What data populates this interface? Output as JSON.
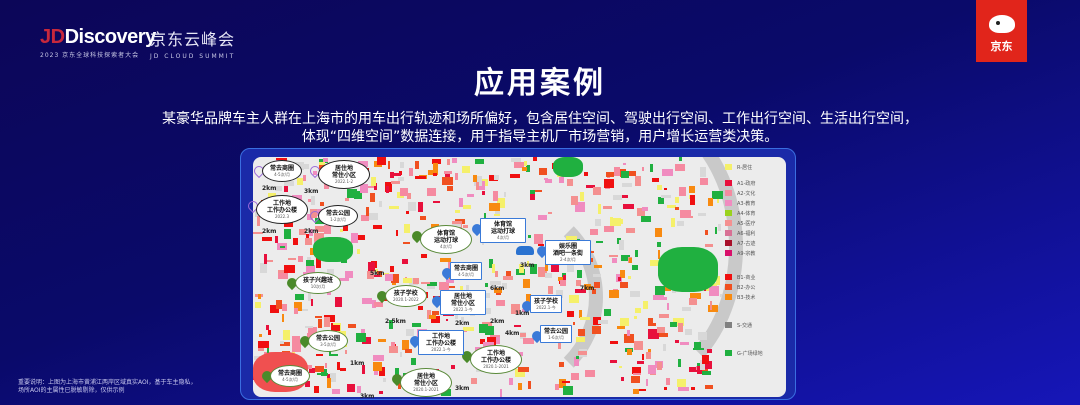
{
  "header": {
    "logo_text": "JDDiscovery",
    "logo_subtitle": "2023 京东全球科技探索者大会",
    "summit_cn": "京东云峰会",
    "summit_en": "JD CLOUD SUMMIT",
    "brand_badge": "京东",
    "brand_color": "#e1251b"
  },
  "title": "应用案例",
  "description": [
    "某豪华品牌车主人群在上海市的用车出行轨迹和场所偏好，包含居住空间、驾驶出行空间、工作出行空间、生活出行空间，",
    "体现“四维空间”数据连接，用于指导主机厂市场营销，用户增长运营类决策。"
  ],
  "map": {
    "callouts": [
      {
        "title": "常去商圈",
        "sub": "4-5次/月",
        "style": "k"
      },
      {
        "title": "居住地 常住小区",
        "sub": "2022.1-2",
        "style": "k"
      },
      {
        "title": "工作地 工作办公楼",
        "sub": "2022.3",
        "style": "k"
      },
      {
        "title": "常去公园",
        "sub": "1-2次/月",
        "style": "k"
      },
      {
        "title": "体育馆 运动打球",
        "sub": "4次/月",
        "style": "g"
      },
      {
        "title": "体育馆 运动打球",
        "sub": "4次/月",
        "style": "b"
      },
      {
        "title": "娱乐圈 酒吧一条街",
        "sub": "2-4次/月",
        "style": "b"
      },
      {
        "title": "常去商圈",
        "sub": "4-5次/月",
        "style": "b"
      },
      {
        "title": "孩子兴趣班",
        "sub": "10次/月",
        "style": "g"
      },
      {
        "title": "孩子学校",
        "sub": "2020.1-2022",
        "style": "g"
      },
      {
        "title": "居住地 常住小区",
        "sub": "2022.1-今",
        "style": "b"
      },
      {
        "title": "孩子学校",
        "sub": "2022.1-今",
        "style": "b"
      },
      {
        "title": "常去公园",
        "sub": "1-6次/月",
        "style": "b"
      },
      {
        "title": "工作地 工作办公楼",
        "sub": "2022.1-今",
        "style": "b"
      },
      {
        "title": "工作地 工作办公楼",
        "sub": "2020.1-2021",
        "style": "g"
      },
      {
        "title": "常去公园",
        "sub": "3-5次/月",
        "style": "g"
      },
      {
        "title": "常去商圈",
        "sub": "4-5次/月",
        "style": "g"
      },
      {
        "title": "居住地 常住小区",
        "sub": "2020.1-2021",
        "style": "g"
      }
    ],
    "distances": [
      "2km",
      "3km",
      "2km",
      "2km",
      "5km",
      "3km",
      "6km",
      "2km",
      "7km",
      "4km",
      "1km",
      "2km",
      "2.5km",
      "1km",
      "3km",
      "3km"
    ]
  },
  "legend": [
    {
      "label": "R-居住",
      "color": "#f5f06a"
    },
    {
      "label": "A1-政府",
      "color": "#e8103c"
    },
    {
      "label": "A2-文化",
      "color": "#f58aa0"
    },
    {
      "label": "A3-教育",
      "color": "#f08cc0"
    },
    {
      "label": "A4-体育",
      "color": "#9ad21e"
    },
    {
      "label": "A5-医疗",
      "color": "#f49090"
    },
    {
      "label": "A6-福利",
      "color": "#d87094"
    },
    {
      "label": "A7-古迹",
      "color": "#a8102a"
    },
    {
      "label": "A9-宗教",
      "color": "#d8106a"
    },
    {
      "label": "B1-商业",
      "color": "#f01010"
    },
    {
      "label": "B2-办公",
      "color": "#f05020"
    },
    {
      "label": "B3-技术",
      "color": "#f88a10"
    },
    {
      "label": "S-交通",
      "color": "#808080"
    },
    {
      "label": "G-广场绿地",
      "color": "#20b040"
    }
  ],
  "footnote": [
    "重要说明：上图为上海市黄浦江两岸区域真实AOI，基于车主隐私，",
    "场所AOI的主属性已脱敏剔除，仅供示例"
  ]
}
